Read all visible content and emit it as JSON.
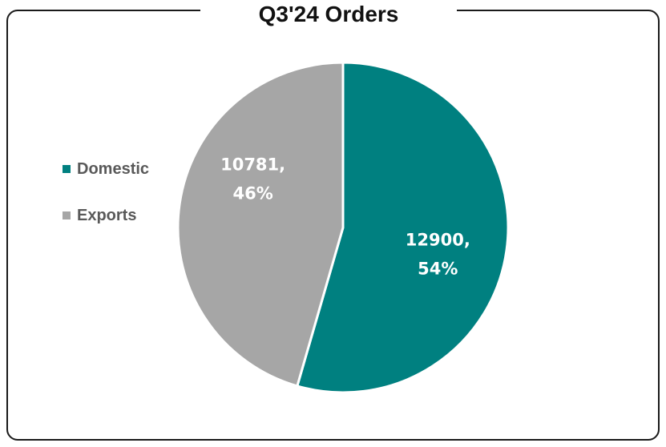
{
  "chart_data": {
    "type": "pie",
    "title": "Q3'24 Orders",
    "categories": [
      "Domestic",
      "Exports"
    ],
    "values": [
      12900,
      10781
    ],
    "percentages": [
      "54%",
      "46%"
    ],
    "data_labels": [
      {
        "line1": "12900,",
        "line2": "54%"
      },
      {
        "line1": "10781,",
        "line2": "46%"
      }
    ],
    "colors": [
      "#008080",
      "#A6A6A6"
    ],
    "label_color": "#FFFFFF",
    "legend_position": "left",
    "start_angle_deg": 0,
    "direction": "clockwise"
  }
}
